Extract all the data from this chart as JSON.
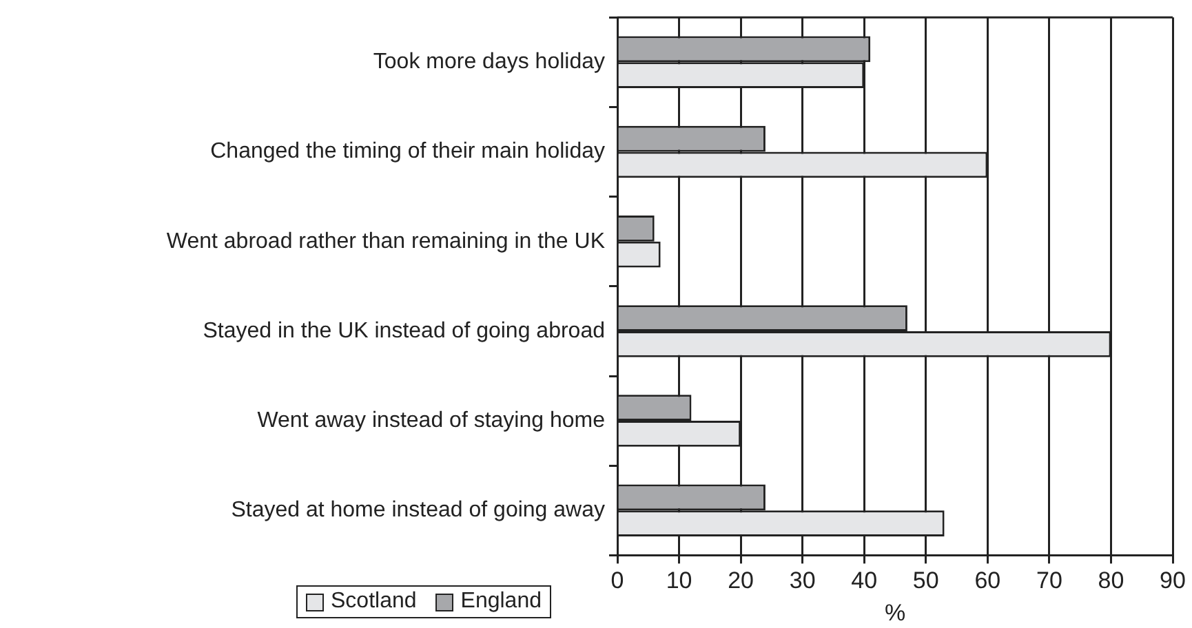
{
  "chart_data": {
    "type": "bar",
    "orientation": "horizontal",
    "xlabel": "%",
    "categories": [
      "Took more days holiday",
      "Changed the timing of their main holiday",
      "Went abroad rather than remaining in the UK",
      "Stayed in the UK instead of going abroad",
      "Went away instead of staying home",
      "Stayed at home instead of going away"
    ],
    "series": [
      {
        "name": "England",
        "color": "#a7a8ab",
        "values": [
          41,
          24,
          6,
          47,
          12,
          24
        ]
      },
      {
        "name": "Scotland",
        "color": "#e5e6e8",
        "values": [
          40,
          60,
          7,
          80,
          20,
          53
        ]
      }
    ],
    "xlim": [
      0,
      90
    ],
    "xticks": [
      0,
      10,
      20,
      30,
      40,
      50,
      60,
      70,
      80,
      90
    ],
    "grid": "x",
    "legend": "bottom left"
  }
}
